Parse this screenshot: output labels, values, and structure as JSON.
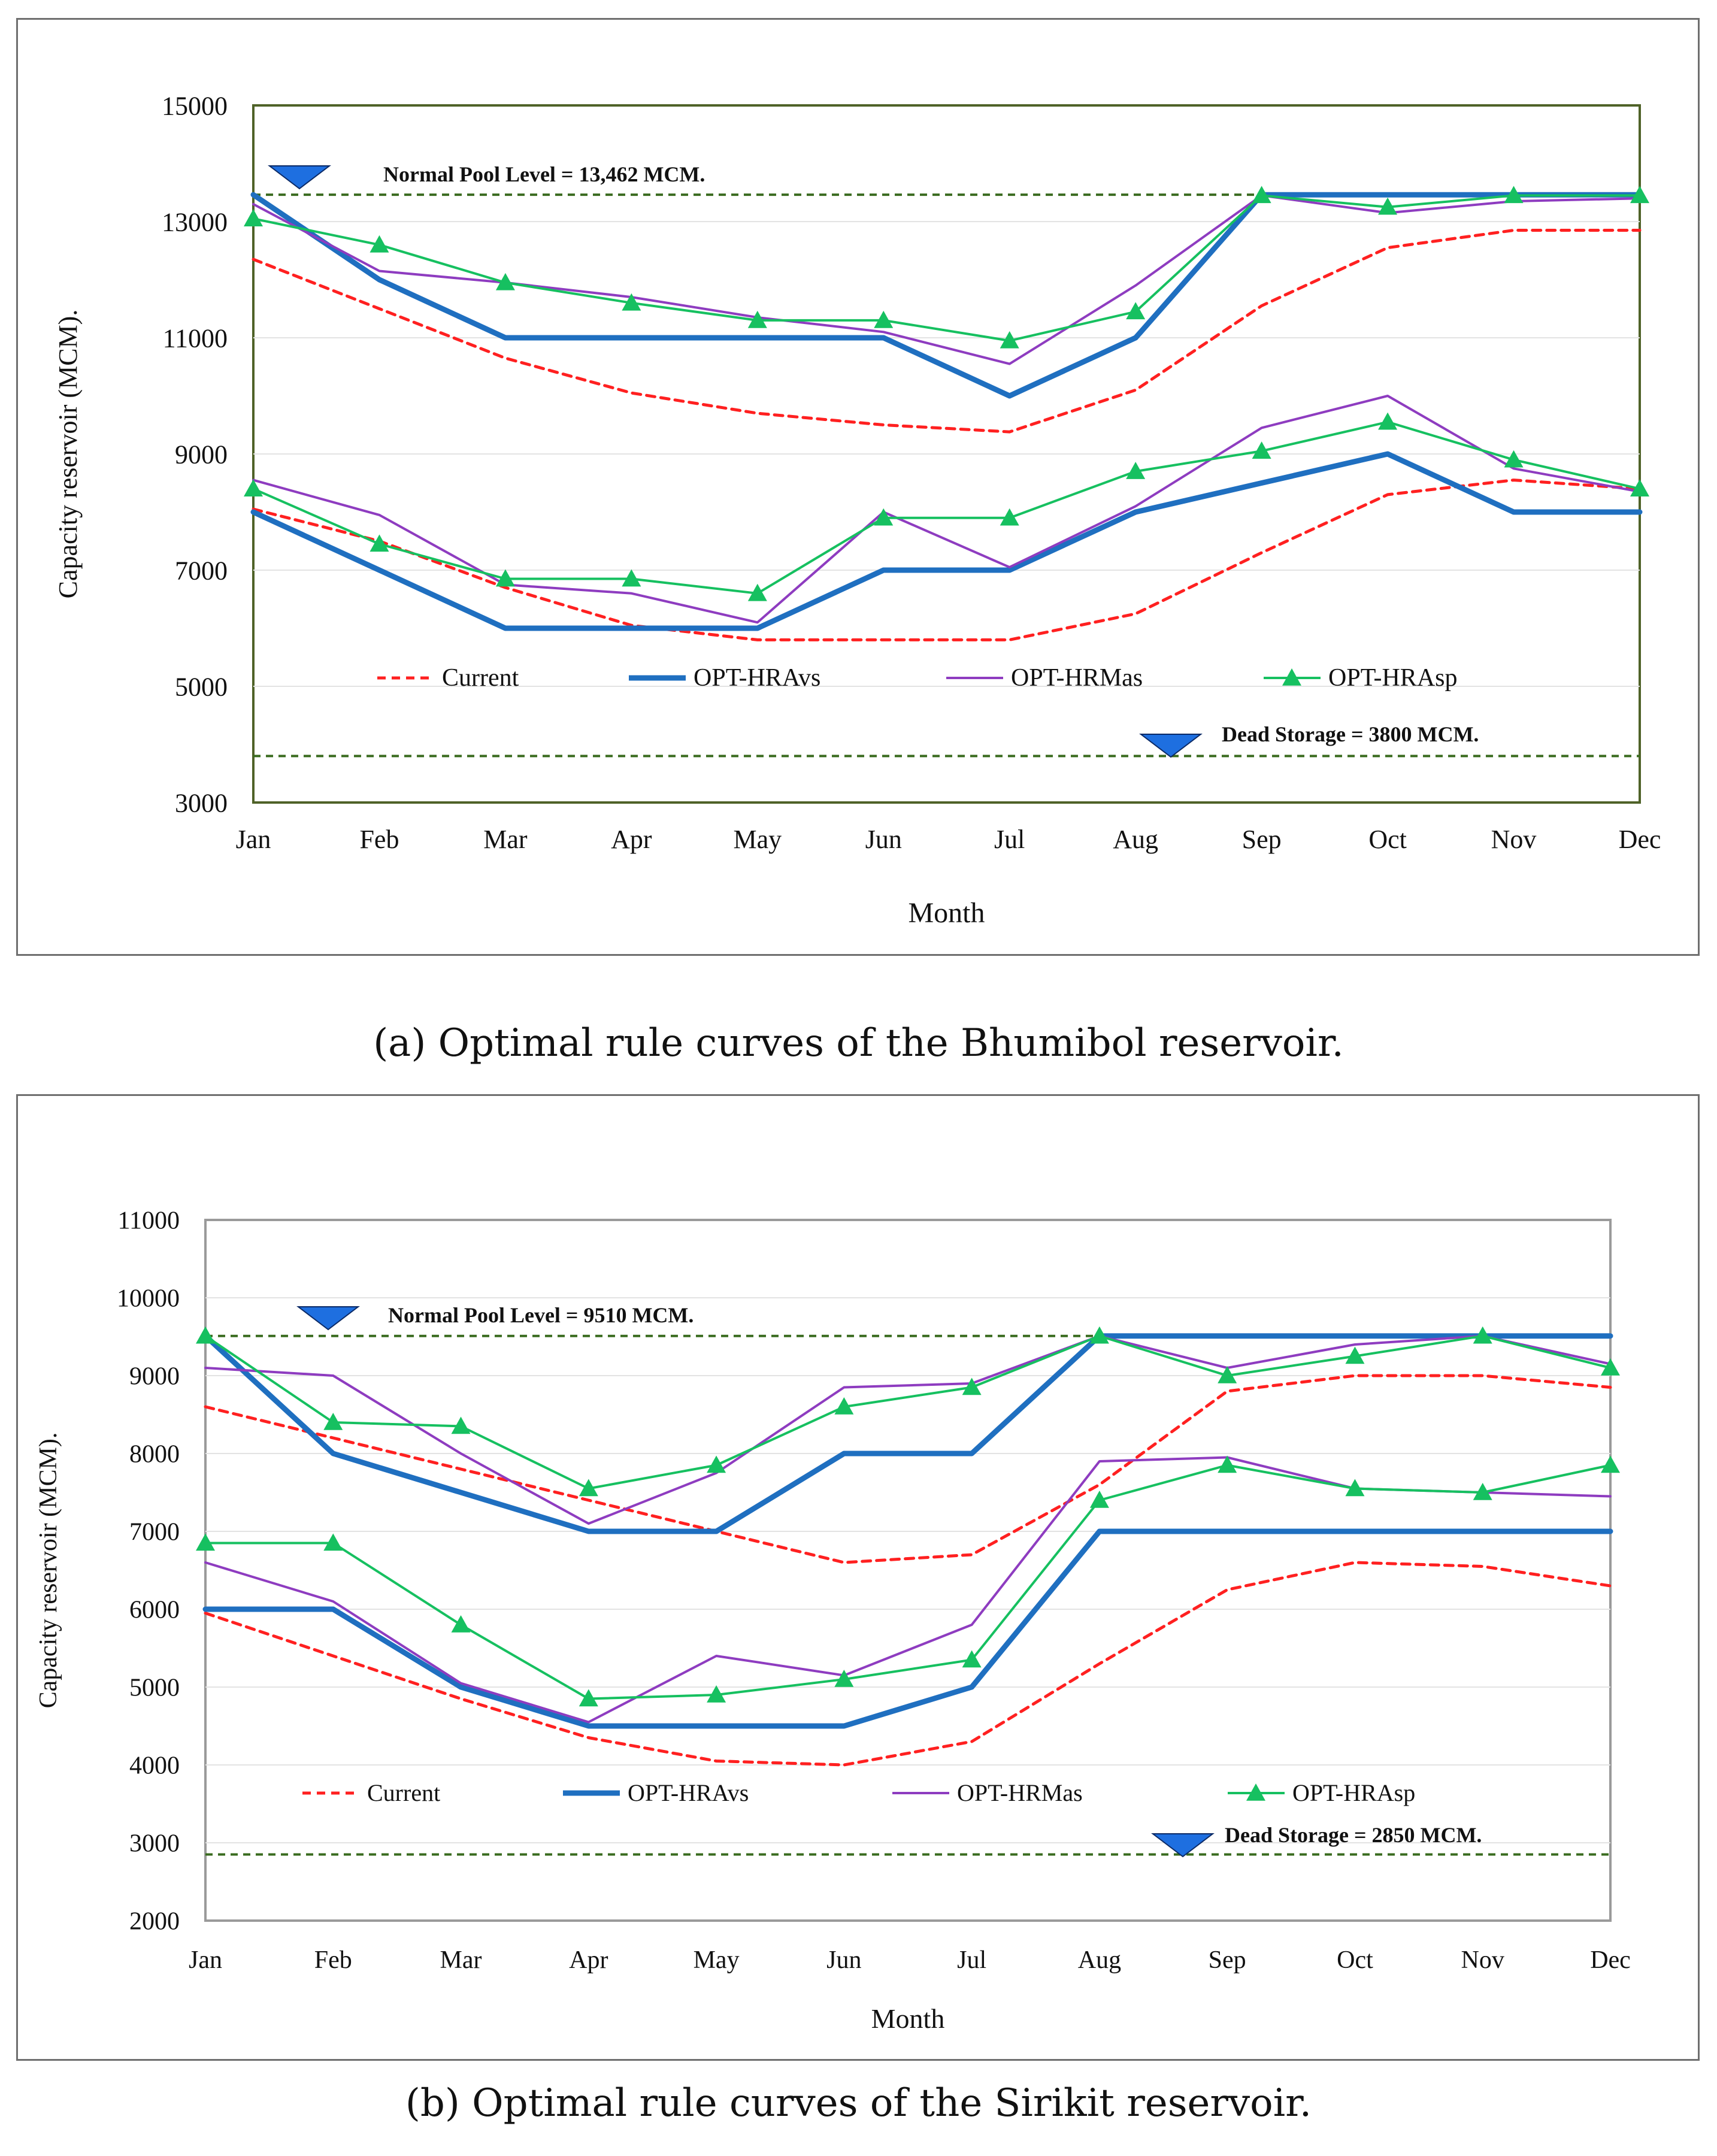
{
  "chart_data": [
    {
      "type": "line",
      "title": "",
      "caption": "(a) Optimal rule curves of the Bhumibol reservoir.",
      "xlabel": "Month",
      "ylabel": "Capacity reservoir (MCM).",
      "ylim": [
        3000,
        15000
      ],
      "yticks": [
        3000,
        5000,
        7000,
        9000,
        11000,
        13000,
        15000
      ],
      "categories": [
        "Jan",
        "Feb",
        "Mar",
        "Apr",
        "May",
        "Jun",
        "Jul",
        "Aug",
        "Sep",
        "Oct",
        "Nov",
        "Dec"
      ],
      "reference_lines": [
        {
          "name": "normal-pool-level",
          "label": "Normal Pool Level = 13,462  MCM.",
          "value": 13462,
          "color": "#3a6b1f"
        },
        {
          "name": "dead-storage",
          "label": "Dead Storage = 3800 MCM.",
          "value": 3800,
          "color": "#3a6b1f"
        }
      ],
      "legend_position": "bottom-inside",
      "series": [
        {
          "name": "Current",
          "key": "current",
          "curve": "upper",
          "values": [
            12350,
            11500,
            10650,
            10050,
            9700,
            9500,
            9380,
            10100,
            11550,
            12550,
            12850,
            12850
          ]
        },
        {
          "name": "Current",
          "key": "current",
          "curve": "lower",
          "values": [
            8050,
            7500,
            6700,
            6050,
            5800,
            5800,
            5800,
            6250,
            7300,
            8300,
            8550,
            8400
          ]
        },
        {
          "name": "OPT-HRAvs",
          "key": "hravs",
          "curve": "upper",
          "values": [
            13462,
            12000,
            11000,
            11000,
            11000,
            11000,
            10000,
            11000,
            13462,
            13462,
            13462,
            13462
          ]
        },
        {
          "name": "OPT-HRAvs",
          "key": "hravs",
          "curve": "lower",
          "values": [
            8000,
            7000,
            6000,
            6000,
            6000,
            7000,
            7000,
            8000,
            8500,
            9000,
            8000,
            8000
          ]
        },
        {
          "name": "OPT-HRMas",
          "key": "hrmas",
          "curve": "upper",
          "values": [
            13300,
            12150,
            11950,
            11700,
            11350,
            11100,
            10550,
            11900,
            13450,
            13150,
            13350,
            13400
          ]
        },
        {
          "name": "OPT-HRMas",
          "key": "hrmas",
          "curve": "lower",
          "values": [
            8550,
            7950,
            6750,
            6600,
            6100,
            8000,
            7050,
            8100,
            9450,
            10000,
            8750,
            8350
          ]
        },
        {
          "name": "OPT-HRAsp",
          "key": "hrasp",
          "curve": "upper",
          "values": [
            13050,
            12600,
            11950,
            11600,
            11300,
            11300,
            10950,
            11450,
            13450,
            13250,
            13450,
            13450
          ]
        },
        {
          "name": "OPT-HRAsp",
          "key": "hrasp",
          "curve": "lower",
          "values": [
            8400,
            7450,
            6850,
            6850,
            6600,
            7900,
            7900,
            8700,
            9050,
            9550,
            8900,
            8400
          ]
        }
      ]
    },
    {
      "type": "line",
      "title": "",
      "caption": "(b) Optimal rule curves of the Sirikit reservoir.",
      "xlabel": "Month",
      "ylabel": "Capacity reservoir (MCM).",
      "ylim": [
        2000,
        11000
      ],
      "yticks": [
        2000,
        3000,
        4000,
        5000,
        6000,
        7000,
        8000,
        9000,
        10000,
        11000
      ],
      "categories": [
        "Jan",
        "Feb",
        "Mar",
        "Apr",
        "May",
        "Jun",
        "Jul",
        "Aug",
        "Sep",
        "Oct",
        "Nov",
        "Dec"
      ],
      "reference_lines": [
        {
          "name": "normal-pool-level",
          "label": "Normal Pool Level = 9510  MCM.",
          "value": 9510,
          "color": "#3a6b1f"
        },
        {
          "name": "dead-storage",
          "label": "Dead Storage = 2850 MCM.",
          "value": 2850,
          "color": "#3a6b1f"
        }
      ],
      "legend_position": "bottom-inside",
      "series": [
        {
          "name": "Current",
          "key": "current",
          "curve": "upper",
          "values": [
            8600,
            8200,
            7800,
            7400,
            7000,
            6600,
            6700,
            7600,
            8800,
            9000,
            9000,
            8850
          ]
        },
        {
          "name": "Current",
          "key": "current",
          "curve": "lower",
          "values": [
            5950,
            5400,
            4850,
            4350,
            4050,
            4000,
            4300,
            5300,
            6250,
            6600,
            6550,
            6300
          ]
        },
        {
          "name": "OPT-HRAvs",
          "key": "hravs",
          "curve": "upper",
          "values": [
            9510,
            8000,
            7500,
            7000,
            7000,
            8000,
            8000,
            9510,
            9510,
            9510,
            9510,
            9510
          ]
        },
        {
          "name": "OPT-HRAvs",
          "key": "hravs",
          "curve": "lower",
          "values": [
            6000,
            6000,
            5000,
            4500,
            4500,
            4500,
            5000,
            7000,
            7000,
            7000,
            7000,
            7000
          ]
        },
        {
          "name": "OPT-HRMas",
          "key": "hrmas",
          "curve": "upper",
          "values": [
            9100,
            9000,
            8000,
            7100,
            7750,
            8850,
            8900,
            9510,
            9100,
            9400,
            9510,
            9150
          ]
        },
        {
          "name": "OPT-HRMas",
          "key": "hrmas",
          "curve": "lower",
          "values": [
            6600,
            6100,
            5050,
            4550,
            5400,
            5150,
            5800,
            7900,
            7950,
            7550,
            7500,
            7450
          ]
        },
        {
          "name": "OPT-HRAsp",
          "key": "hrasp",
          "curve": "upper",
          "values": [
            9510,
            8400,
            8350,
            7550,
            7850,
            8600,
            8850,
            9510,
            9000,
            9250,
            9510,
            9100
          ]
        },
        {
          "name": "OPT-HRAsp",
          "key": "hrasp",
          "curve": "lower",
          "values": [
            6850,
            6850,
            5800,
            4850,
            4900,
            5100,
            5350,
            7400,
            7850,
            7550,
            7500,
            7850
          ]
        }
      ]
    }
  ],
  "styles": {
    "current": {
      "color": "#ff2020",
      "dash": "14,10",
      "width": 5,
      "marker": "none"
    },
    "hravs": {
      "color": "#1f6fc0",
      "dash": "",
      "width": 9,
      "marker": "none"
    },
    "hrmas": {
      "color": "#8e3cc0",
      "dash": "",
      "width": 4,
      "marker": "none"
    },
    "hrasp": {
      "color": "#16c060",
      "dash": "",
      "width": 4,
      "marker": "triangle"
    },
    "reference_marker_color": "#1e6fe0",
    "plot_border_a": "#4f6228",
    "plot_border_b": "#9a9a9a"
  },
  "legend_labels": [
    "Current",
    "OPT-HRAvs",
    "OPT-HRMas",
    "OPT-HRAsp"
  ]
}
